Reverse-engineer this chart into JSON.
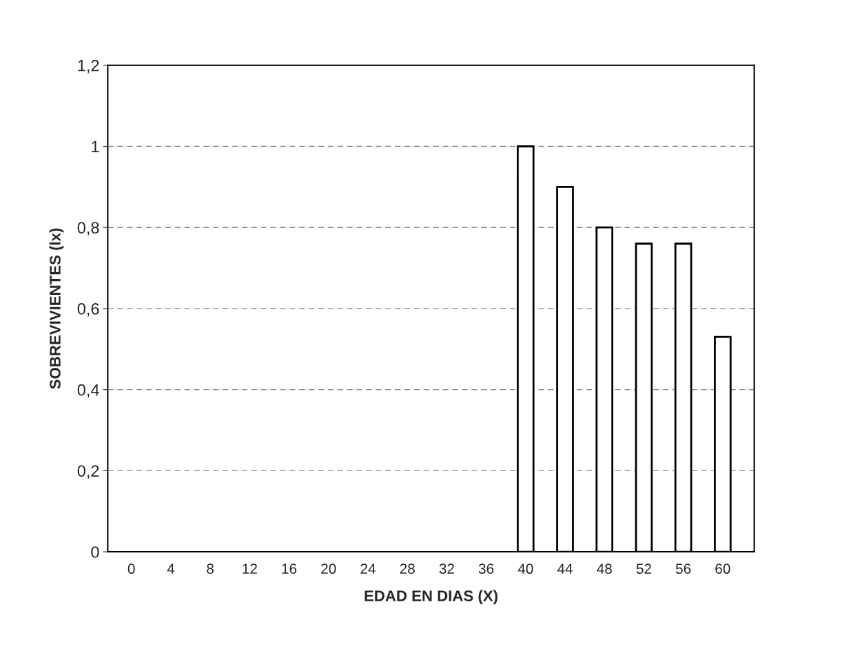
{
  "chart_data": {
    "type": "bar",
    "xlabel": "EDAD EN DIAS (X)",
    "ylabel": "SOBREVIVIENTES (lx)",
    "categories": [
      "0",
      "4",
      "8",
      "12",
      "16",
      "20",
      "24",
      "28",
      "32",
      "36",
      "40",
      "44",
      "48",
      "52",
      "56",
      "60"
    ],
    "values": [
      null,
      null,
      null,
      null,
      null,
      null,
      null,
      null,
      null,
      null,
      1.0,
      0.9,
      0.8,
      0.76,
      0.76,
      0.53
    ],
    "color": "#ffffff",
    "ylim": [
      0,
      1.2
    ],
    "yticks": [
      {
        "value": 0,
        "label": "0"
      },
      {
        "value": 0.2,
        "label": "0,2"
      },
      {
        "value": 0.4,
        "label": "0,4"
      },
      {
        "value": 0.6,
        "label": "0,6"
      },
      {
        "value": 0.8,
        "label": "0,8"
      },
      {
        "value": 1,
        "label": "1"
      },
      {
        "value": 1.2,
        "label": "1,2"
      }
    ],
    "grid": "y"
  }
}
